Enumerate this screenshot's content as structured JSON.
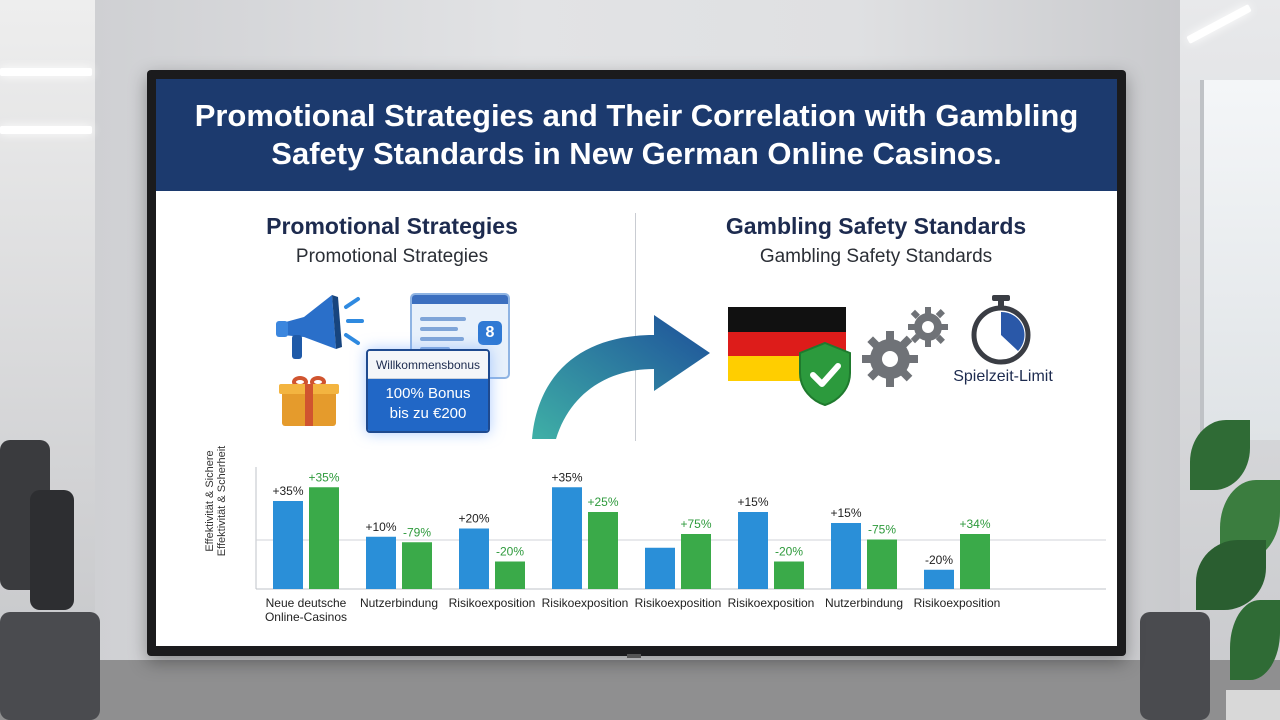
{
  "title": "Promotional Strategies and Their Correlation with Gambling Safety Standards in New German Online Casinos.",
  "left_section": {
    "heading": "Promotional Strategies",
    "subheading": "Promotional Strategies",
    "bonus_card_title": "Willkommensbonus",
    "bonus_card_line1": "100% Bonus",
    "bonus_card_line2": "bis zu €200"
  },
  "right_section": {
    "heading": "Gambling Safety Standards",
    "subheading": "Gambling Safety Standards",
    "timer_label": "Spielzeit-Limit"
  },
  "icons": [
    "megaphone-icon",
    "gift-icon",
    "browser-window-icon",
    "curved-arrow-icon",
    "germany-flag-icon",
    "check-shield-icon",
    "gears-icon",
    "stopwatch-icon"
  ],
  "colors": {
    "title_band": "#1c3a6e",
    "blue_series": "#2a8fd8",
    "green_series": "#3aaa49",
    "green_label": "#2e9a3c",
    "flag": [
      "#111111",
      "#dd1c1a",
      "#ffce00"
    ]
  },
  "chart_data": {
    "type": "bar",
    "title": "",
    "xlabel": "",
    "ylabel_lines": [
      "Effektivität & Sichere",
      "Effektivität & Scherheit"
    ],
    "ylim": [
      0,
      40
    ],
    "grid": "single horizontal line",
    "categories": [
      [
        "Neue deutsche",
        "Online-Casinos"
      ],
      [
        "Nutzerbindung"
      ],
      [
        "Risikoexposition"
      ],
      [
        "Risikoexposition"
      ],
      [
        "Risikoexposition"
      ],
      [
        "Risikoexposition"
      ],
      [
        "Nutzerbindung"
      ],
      [
        "Risikoexposition"
      ]
    ],
    "series": [
      {
        "values": [
          32,
          19,
          22,
          37,
          15,
          28,
          24,
          7
        ],
        "labels": [
          "+35%",
          "+10%",
          "+20%",
          "+35%",
          "",
          "+15%",
          "+15%",
          "-20%"
        ]
      },
      {
        "values": [
          37,
          17,
          10,
          28,
          20,
          10,
          18,
          20
        ],
        "labels": [
          "+35%",
          "-79%",
          "-20%",
          "+25%",
          "+75%",
          "-20%",
          "-75%",
          "+34%"
        ]
      }
    ]
  }
}
